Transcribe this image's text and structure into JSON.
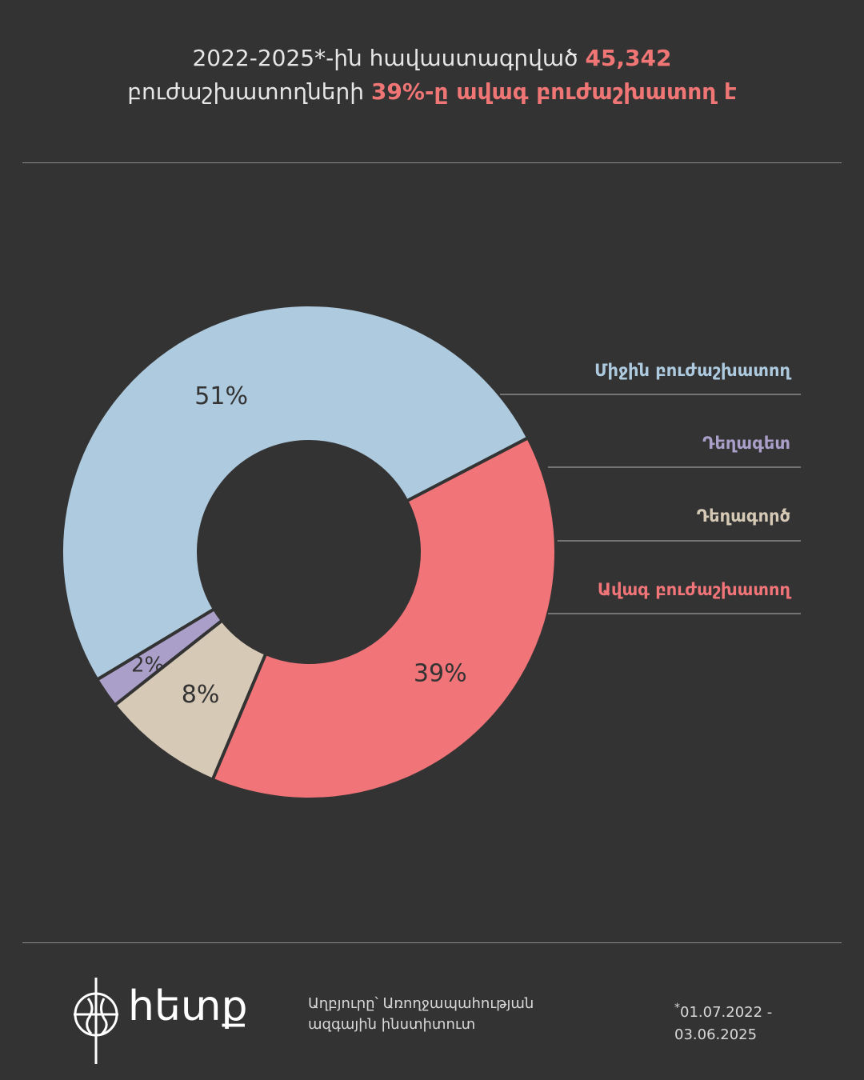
{
  "title": {
    "line1_prefix": "2022-2025*-ին հավաստագրված ",
    "line1_highlight": "45,342",
    "line2_prefix": "բուժաշխատողների ",
    "line2_highlight": "39%-ը ավագ բուժաշխատող է"
  },
  "colors": {
    "background": "#333333",
    "highlight": "#f07575",
    "separator": "#333333"
  },
  "chart_data": {
    "type": "pie",
    "donut": true,
    "series": [
      {
        "name": "Միջին բուժաշխատող",
        "value": 51,
        "label": "51%",
        "color": "#aecadf"
      },
      {
        "name": "Դեղագետ",
        "value": 2,
        "label": "2%",
        "color": "#a99fc9"
      },
      {
        "name": "Դեղագործ",
        "value": 8,
        "label": "8%",
        "color": "#d6c9b6"
      },
      {
        "name": "Ավագ բուժաշխատող",
        "value": 39,
        "label": "39%",
        "color": "#f07478"
      }
    ]
  },
  "footer": {
    "logo_text": "հետք",
    "source_line1": "Աղբյուրը՝ Առողջապահության",
    "source_line2": "ազգային ինստիտուտ",
    "date_star": "*",
    "date_line1": "01.07.2022 -",
    "date_line2": "03.06.2025"
  }
}
